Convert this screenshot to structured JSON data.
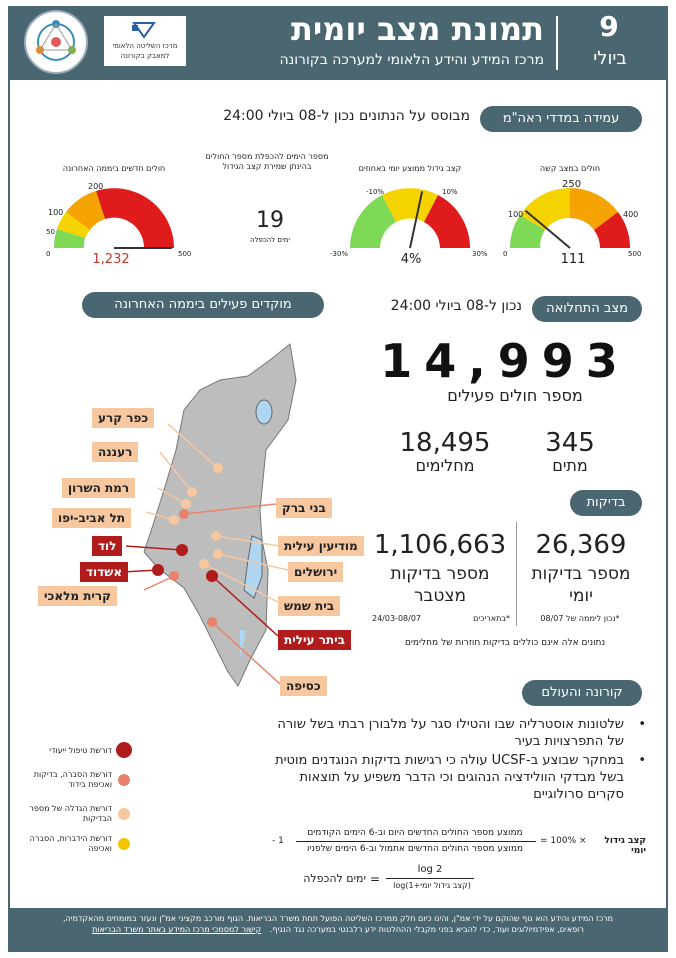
{
  "header": {
    "day": "9",
    "month": "ביולי",
    "title": "תמונת מצב יומית",
    "subtitle": "מרכז המידע והידע הלאומי למערכה בקורונה",
    "org_line1": "מרכז השליטה הלאומי",
    "org_line2": "למאבק בקורונה"
  },
  "rahamim": {
    "pill": "עמידה במדדי ראה\"מ",
    "based_on": "מבוסס על הנתונים נכון ל-08 ביולי 24:00",
    "gauge_severe": {
      "title": "חולים במצב קשה",
      "value": "111",
      "t_left": "0",
      "t_100": "100",
      "t_250": "250",
      "t_400": "400",
      "t_right": "500",
      "fraction": 0.222
    },
    "gauge_growth": {
      "title": "קצב גידול ממוצע יומי באחוזים",
      "value": "4%",
      "t_left": "-30%",
      "t_m10": "-10%",
      "t_10": "10%",
      "t_right": "30%",
      "fraction": 0.567
    },
    "doubling": {
      "title": "מספר הימים להכפלת מספר החולים בהינתן שמירת קצב הגידול",
      "value": "19",
      "unit": "ימים להכפלה"
    },
    "gauge_new": {
      "title": "חולים חדשים ביממה האחרונה",
      "value": "1,232",
      "t_left": "0",
      "t_50": "50",
      "t_100": "100",
      "t_200": "200",
      "t_right": "500",
      "fraction": 1.0
    }
  },
  "hotspots": {
    "pill": "מוקדים פעילים ביממה האחרונה",
    "cities": {
      "kfar_kara": "כפר קרע",
      "raanana": "רעננה",
      "ramat_hasharon": "רמת השרון",
      "tel_aviv": "תל אביב-יפו",
      "lod": "לוד",
      "ashdod": "אשדוד",
      "kiryat_malachi": "קרית מלאכי",
      "bnei_brak": "בני ברק",
      "modiin_illit": "מודיעין עילית",
      "jerusalem": "ירושלים",
      "beit_shemesh": "בית שמש",
      "beitar_illit": "ביתר עילית",
      "kseifa": "כסיפה"
    },
    "legend": [
      {
        "label": "דורשת טיפול ייעודי",
        "color": "#b01c1c"
      },
      {
        "label": "דורשת הסברה, בדיקות ואכיפת בידוד",
        "color": "#e8826a"
      },
      {
        "label": "דורשת הגדלה של מספר הבדיקות",
        "color": "#f7c7a0"
      },
      {
        "label": "דורשת הידברות, הסברה ואכיפה",
        "color": "#f5c400"
      }
    ]
  },
  "status": {
    "pill": "מצב התחלואה",
    "as_of": "נכון ל-08 ביולי 24:00",
    "active": "14,993",
    "active_label": "מספר חולים פעילים",
    "recovered": "18,495",
    "recovered_label": "מחלימים",
    "deaths": "345",
    "deaths_label": "מתים"
  },
  "tests": {
    "pill": "בדיקות",
    "daily": "26,369",
    "daily_label1": "מספר בדיקות",
    "daily_label2": "יומי",
    "daily_note": "*נכון ליממה של 08/07",
    "total": "1,106,663",
    "total_label1": "מספר בדיקות",
    "total_label2": "מצטבר",
    "total_note1": "*בתאריכים",
    "total_note2": "24/03-08/07",
    "disclaimer": "נתונים אלה אינם כוללים בדיקות חוזרות של מחלימים"
  },
  "world": {
    "pill": "קורונה והעולם",
    "bullet1": "שלטונות אוסטרליה שבו והטילו סגר על מלבורן רבתי בשל שורה של התפרצויות בעיר",
    "bullet2": "במחקר שבוצע ב-UCSF עולה כי רגישות בדיקות הנוגדנים מוטית בשל מבדקי הוולידציה הנהוגים וכי הדבר משפיע על תוצאות סקרים סרולוגיים"
  },
  "formulas": {
    "growth_label": "קצב גידול יומי",
    "growth_eq": "= 100% ×",
    "growth_num": "ממוצע מספר החולים החדשים היום וב-6 הימים הקודמים",
    "growth_den": "ממוצע מספר החולים החדשים אתמול וב-6 הימים שלפניו",
    "growth_minus": "- 1",
    "doubling_label": "ימים להכפלה",
    "doubling_eq": "=",
    "doubling_num": "log 2",
    "doubling_den": "log(1+קצב גידול יומי)"
  },
  "footer": {
    "line1": "מרכז המידע והידע הוא גוף שהוקם על ידי אמ\"ן, והינו כיום חלק ממרכז השליטה הפועל תחת משרד הבריאות. הגוף מורכב מקציני אמ\"ן ונעזר במומחים מהאקדמיה,",
    "line2": "רופאים, אפידמיולוגים ועוד, כדי להביא בפני מקבלי ההחלטות ידע רלבנטי במערכה נגד הנגיף.",
    "link": "קישור למסמכי מרכז המידע באתר משרד הבריאות"
  }
}
